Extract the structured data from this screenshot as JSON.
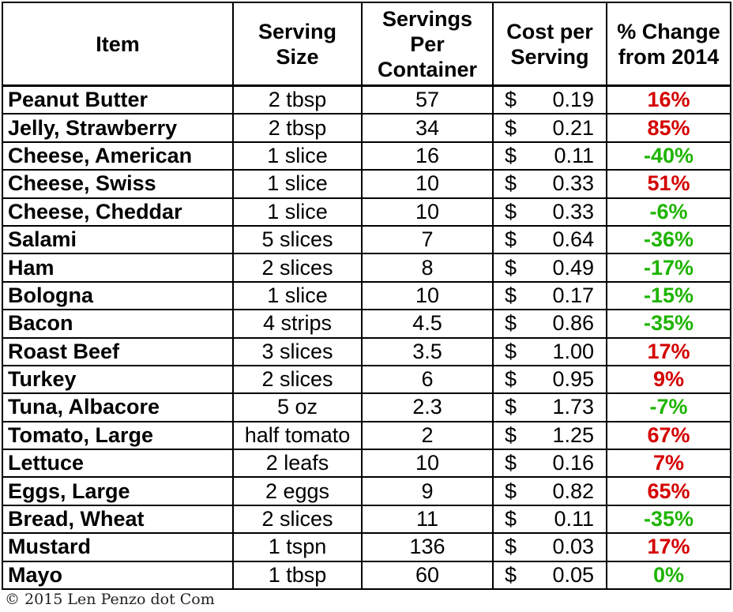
{
  "colors": {
    "increase": "#d40000",
    "decrease": "#1eb400"
  },
  "headers": {
    "item": "Item",
    "serving_size": [
      "Serving",
      "Size"
    ],
    "servings_per_container": [
      "Servings",
      "Per",
      "Container"
    ],
    "cost_per_serving": [
      "Cost per",
      "Serving"
    ],
    "pct_change": [
      "% Change",
      "from 2014"
    ]
  },
  "currency_symbol": "$",
  "rows": [
    {
      "item": "Peanut Butter",
      "serving": "2 tbsp",
      "per_container": "57",
      "cost": "0.19",
      "change": "16%",
      "direction": "increase"
    },
    {
      "item": "Jelly, Strawberry",
      "serving": "2 tbsp",
      "per_container": "34",
      "cost": "0.21",
      "change": "85%",
      "direction": "increase"
    },
    {
      "item": "Cheese, American",
      "serving": "1 slice",
      "per_container": "16",
      "cost": "0.11",
      "change": "-40%",
      "direction": "decrease"
    },
    {
      "item": "Cheese, Swiss",
      "serving": "1 slice",
      "per_container": "10",
      "cost": "0.33",
      "change": "51%",
      "direction": "increase"
    },
    {
      "item": "Cheese, Cheddar",
      "serving": "1 slice",
      "per_container": "10",
      "cost": "0.33",
      "change": "-6%",
      "direction": "decrease"
    },
    {
      "item": "Salami",
      "serving": "5 slices",
      "per_container": "7",
      "cost": "0.64",
      "change": "-36%",
      "direction": "decrease"
    },
    {
      "item": "Ham",
      "serving": "2 slices",
      "per_container": "8",
      "cost": "0.49",
      "change": "-17%",
      "direction": "decrease"
    },
    {
      "item": "Bologna",
      "serving": "1 slice",
      "per_container": "10",
      "cost": "0.17",
      "change": "-15%",
      "direction": "decrease"
    },
    {
      "item": "Bacon",
      "serving": "4 strips",
      "per_container": "4.5",
      "cost": "0.86",
      "change": "-35%",
      "direction": "decrease"
    },
    {
      "item": "Roast Beef",
      "serving": "3 slices",
      "per_container": "3.5",
      "cost": "1.00",
      "change": "17%",
      "direction": "increase"
    },
    {
      "item": "Turkey",
      "serving": "2 slices",
      "per_container": "6",
      "cost": "0.95",
      "change": "9%",
      "direction": "increase"
    },
    {
      "item": "Tuna, Albacore",
      "serving": "5 oz",
      "per_container": "2.3",
      "cost": "1.73",
      "change": "-7%",
      "direction": "decrease"
    },
    {
      "item": "Tomato, Large",
      "serving": "half tomato",
      "per_container": "2",
      "cost": "1.25",
      "change": "67%",
      "direction": "increase"
    },
    {
      "item": "Lettuce",
      "serving": "2 leafs",
      "per_container": "10",
      "cost": "0.16",
      "change": "7%",
      "direction": "increase"
    },
    {
      "item": "Eggs, Large",
      "serving": "2 eggs",
      "per_container": "9",
      "cost": "0.82",
      "change": "65%",
      "direction": "increase"
    },
    {
      "item": "Bread, Wheat",
      "serving": "2 slices",
      "per_container": "11",
      "cost": "0.11",
      "change": "-35%",
      "direction": "decrease"
    },
    {
      "item": "Mustard",
      "serving": "1 tspn",
      "per_container": "136",
      "cost": "0.03",
      "change": "17%",
      "direction": "increase"
    },
    {
      "item": "Mayo",
      "serving": "1 tbsp",
      "per_container": "60",
      "cost": "0.05",
      "change": "0%",
      "direction": "decrease"
    }
  ],
  "copyright": "© 2015 Len Penzo dot Com"
}
